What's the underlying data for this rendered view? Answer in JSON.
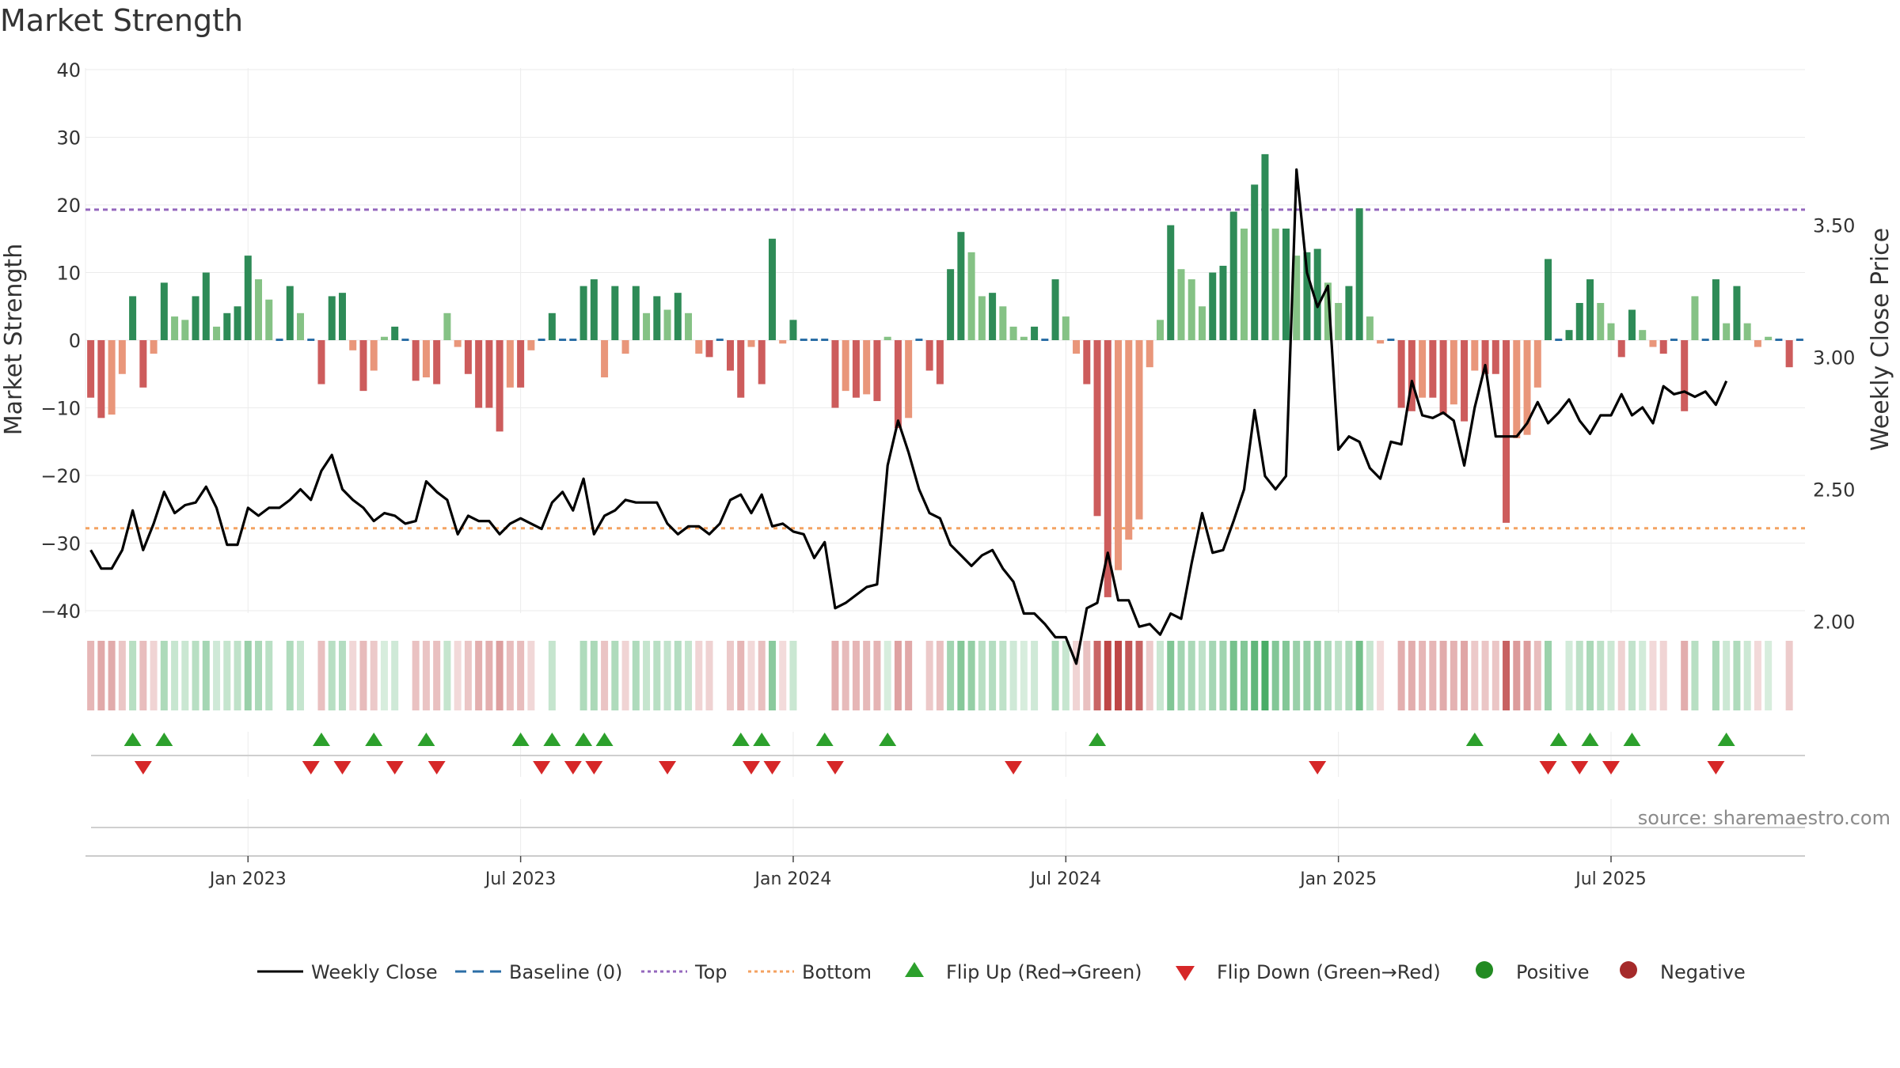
{
  "chart_data": {
    "type": "bar",
    "title": "Market Strength",
    "ylabel_left": "Market Strength",
    "ylabel_right": "Weekly Close Price",
    "ylim_left": [
      -40,
      40
    ],
    "yticks_left": [
      40,
      30,
      20,
      10,
      0,
      -10,
      -20,
      -30,
      -40
    ],
    "yticks_left_labels": [
      "40",
      "30",
      "20",
      "10",
      "0",
      "−10",
      "−20",
      "−30",
      "−40"
    ],
    "ylim_right": [
      1.71,
      3.76
    ],
    "yticks_right": [
      3.5,
      3.0,
      2.5,
      2.0
    ],
    "yticks_right_labels": [
      "3.50",
      "3.00",
      "2.50",
      "2.00"
    ],
    "x_tick_labels": [
      "Jan 2023",
      "Jul 2023",
      "Jan 2024",
      "Jul 2024",
      "Jan 2025",
      "Jul 2025"
    ],
    "x_tick_positions": [
      15.5,
      41.5,
      67.5,
      93.5,
      119.5,
      145.5
    ],
    "top_line": 19.3,
    "bottom_line": -27.8,
    "grid": true,
    "legend_position": "bottom",
    "source": "source: sharemaestro.com",
    "strength": [
      -8.5,
      -11.5,
      -11,
      -5,
      6.5,
      -7,
      -2,
      8.5,
      3.5,
      3,
      6.5,
      10,
      2,
      4,
      5,
      12.5,
      9,
      6,
      0,
      8,
      4,
      0,
      -6.5,
      6.5,
      7,
      -1.5,
      -7.5,
      -4.5,
      0.5,
      2,
      0,
      -6,
      -5.5,
      -6.5,
      4,
      -1,
      -5,
      -10,
      -10,
      -13.5,
      -7,
      -7,
      -1.5,
      0,
      4,
      0,
      0,
      8,
      9,
      -5.5,
      8,
      -2,
      8,
      4,
      6.5,
      4.5,
      7,
      4,
      -2,
      -2.5,
      0,
      -4.5,
      -8.5,
      -1,
      -6.5,
      15,
      -0.5,
      3,
      0,
      0,
      0,
      -10,
      -7.5,
      -8.5,
      -8,
      -9,
      0.5,
      -13,
      -11.5,
      0,
      -4.5,
      -6.5,
      10.5,
      16,
      13,
      6.5,
      7,
      5,
      2,
      0.5,
      2,
      0,
      9,
      3.5,
      -2,
      -6.5,
      -26,
      -38,
      -34,
      -29.5,
      -26.5,
      -4,
      3,
      17,
      10.5,
      9,
      5,
      10,
      11,
      19,
      16.5,
      23,
      27.5,
      16.5,
      16.5,
      12.5,
      13,
      13.5,
      8.5,
      5.5,
      8,
      19.5,
      3.5,
      -0.5,
      0,
      -10,
      -10.5,
      -8.5,
      -8.5,
      -11,
      -9.5,
      -12,
      -4.5,
      -5,
      -5,
      -27,
      -14.5,
      -14,
      -7,
      12,
      0,
      1.5,
      5.5,
      9,
      5.5,
      2.5,
      -2.5,
      4.5,
      1.5,
      -1,
      -2,
      0,
      -10.5,
      6.5,
      0,
      9,
      2.5,
      8,
      2.5,
      -1,
      0.5,
      0,
      -4,
      0
    ],
    "close": [
      2.27,
      2.2,
      2.2,
      2.27,
      2.42,
      2.27,
      2.37,
      2.49,
      2.41,
      2.44,
      2.45,
      2.51,
      2.43,
      2.29,
      2.29,
      2.43,
      2.4,
      2.43,
      2.43,
      2.46,
      2.5,
      2.46,
      2.57,
      2.63,
      2.5,
      2.46,
      2.43,
      2.38,
      2.41,
      2.4,
      2.37,
      2.38,
      2.53,
      2.49,
      2.46,
      2.33,
      2.4,
      2.38,
      2.38,
      2.33,
      2.37,
      2.39,
      2.37,
      2.35,
      2.45,
      2.49,
      2.42,
      2.54,
      2.33,
      2.4,
      2.42,
      2.46,
      2.45,
      2.45,
      2.45,
      2.37,
      2.33,
      2.36,
      2.36,
      2.33,
      2.37,
      2.46,
      2.48,
      2.41,
      2.48,
      2.36,
      2.37,
      2.34,
      2.33,
      2.24,
      2.3,
      2.05,
      2.07,
      2.1,
      2.13,
      2.14,
      2.59,
      2.76,
      2.64,
      2.5,
      2.41,
      2.39,
      2.29,
      2.25,
      2.21,
      2.25,
      2.27,
      2.2,
      2.15,
      2.03,
      2.03,
      1.99,
      1.94,
      1.94,
      1.84,
      2.05,
      2.07,
      2.26,
      2.08,
      2.08,
      1.98,
      1.99,
      1.95,
      2.03,
      2.01,
      2.22,
      2.41,
      2.26,
      2.27,
      2.38,
      2.5,
      2.8,
      2.55,
      2.5,
      2.55,
      3.71,
      3.32,
      3.19,
      3.27,
      2.65,
      2.7,
      2.68,
      2.58,
      2.54,
      2.68,
      2.67,
      2.91,
      2.78,
      2.77,
      2.79,
      2.76,
      2.59,
      2.81,
      2.97,
      2.7,
      2.7,
      2.7,
      2.75,
      2.83,
      2.75,
      2.79,
      2.84,
      2.76,
      2.71,
      2.78,
      2.78,
      2.86,
      2.78,
      2.81,
      2.75,
      2.89,
      2.86,
      2.87,
      2.85,
      2.87,
      2.82,
      2.91
    ],
    "flip_up_indices": [
      4,
      7,
      22,
      27,
      32,
      41,
      44,
      47,
      49,
      62,
      64,
      70,
      76,
      96,
      132,
      140,
      143,
      147,
      156
    ],
    "flip_down_indices": [
      5,
      21,
      24,
      29,
      33,
      43,
      46,
      48,
      55,
      63,
      65,
      71,
      88,
      117,
      139,
      142,
      145,
      155
    ],
    "series": [
      {
        "name": "Weekly Close",
        "color": "#000000"
      },
      {
        "name": "Baseline (0)",
        "color": "#2b6ea6"
      },
      {
        "name": "Top",
        "color": "#9467bd"
      },
      {
        "name": "Bottom",
        "color": "#f4a261"
      },
      {
        "name": "Flip Up (Red→Green)",
        "color": "#2ca02c"
      },
      {
        "name": "Flip Down (Green→Red)",
        "color": "#d62728"
      },
      {
        "name": "Positive",
        "color": "#228b22"
      },
      {
        "name": "Negative",
        "color": "#a52a2a"
      }
    ]
  }
}
